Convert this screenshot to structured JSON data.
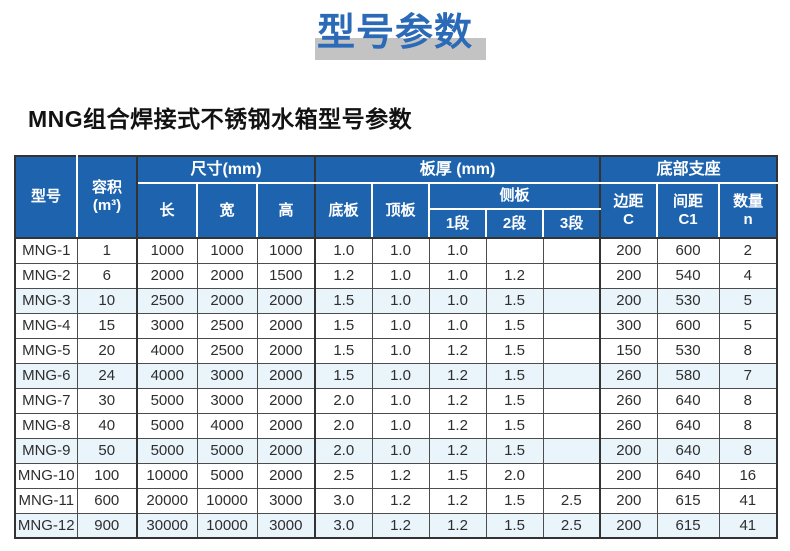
{
  "title": "型号参数",
  "subtitle": "MNG组合焊接式不锈钢水箱型号参数",
  "colors": {
    "header_blue": "#1e63ae",
    "title_blue": "#2b6ab7",
    "title_band_gray": "#c3c3c3",
    "stripe_blue": "#e9f4fb"
  },
  "table": {
    "header": {
      "model": "型号",
      "volume": "容积\n(m³)",
      "size_group": "尺寸(mm)",
      "length": "长",
      "width": "宽",
      "height": "高",
      "thickness_group": "板厚 (mm)",
      "bottom_plate": "底板",
      "top_plate": "顶板",
      "side_plate_group": "侧板",
      "seg1": "1段",
      "seg2": "2段",
      "seg3": "3段",
      "support_group": "底部支座",
      "edge_distance": "边距\nC",
      "spacing": "间距\nC1",
      "quantity": "数量\nn"
    },
    "rows": [
      [
        "MNG-1",
        "1",
        "1000",
        "1000",
        "1000",
        "1.0",
        "1.0",
        "1.0",
        "",
        "",
        "200",
        "600",
        "2"
      ],
      [
        "MNG-2",
        "6",
        "2000",
        "2000",
        "1500",
        "1.2",
        "1.0",
        "1.0",
        "1.2",
        "",
        "200",
        "540",
        "4"
      ],
      [
        "MNG-3",
        "10",
        "2500",
        "2000",
        "2000",
        "1.5",
        "1.0",
        "1.0",
        "1.5",
        "",
        "200",
        "530",
        "5"
      ],
      [
        "MNG-4",
        "15",
        "3000",
        "2500",
        "2000",
        "1.5",
        "1.0",
        "1.0",
        "1.5",
        "",
        "300",
        "600",
        "5"
      ],
      [
        "MNG-5",
        "20",
        "4000",
        "2500",
        "2000",
        "1.5",
        "1.0",
        "1.2",
        "1.5",
        "",
        "150",
        "530",
        "8"
      ],
      [
        "MNG-6",
        "24",
        "4000",
        "3000",
        "2000",
        "1.5",
        "1.0",
        "1.2",
        "1.5",
        "",
        "260",
        "580",
        "7"
      ],
      [
        "MNG-7",
        "30",
        "5000",
        "3000",
        "2000",
        "2.0",
        "1.0",
        "1.2",
        "1.5",
        "",
        "260",
        "640",
        "8"
      ],
      [
        "MNG-8",
        "40",
        "5000",
        "4000",
        "2000",
        "2.0",
        "1.0",
        "1.2",
        "1.5",
        "",
        "260",
        "640",
        "8"
      ],
      [
        "MNG-9",
        "50",
        "5000",
        "5000",
        "2000",
        "2.0",
        "1.0",
        "1.2",
        "1.5",
        "",
        "200",
        "640",
        "8"
      ],
      [
        "MNG-10",
        "100",
        "10000",
        "5000",
        "2000",
        "2.5",
        "1.2",
        "1.5",
        "2.0",
        "",
        "200",
        "640",
        "16"
      ],
      [
        "MNG-11",
        "600",
        "20000",
        "10000",
        "3000",
        "3.0",
        "1.2",
        "1.2",
        "1.5",
        "2.5",
        "200",
        "615",
        "41"
      ],
      [
        "MNG-12",
        "900",
        "30000",
        "10000",
        "3000",
        "3.0",
        "1.2",
        "1.2",
        "1.5",
        "2.5",
        "200",
        "615",
        "41"
      ]
    ],
    "striped_row_indices": [
      2,
      5,
      8,
      11
    ]
  }
}
